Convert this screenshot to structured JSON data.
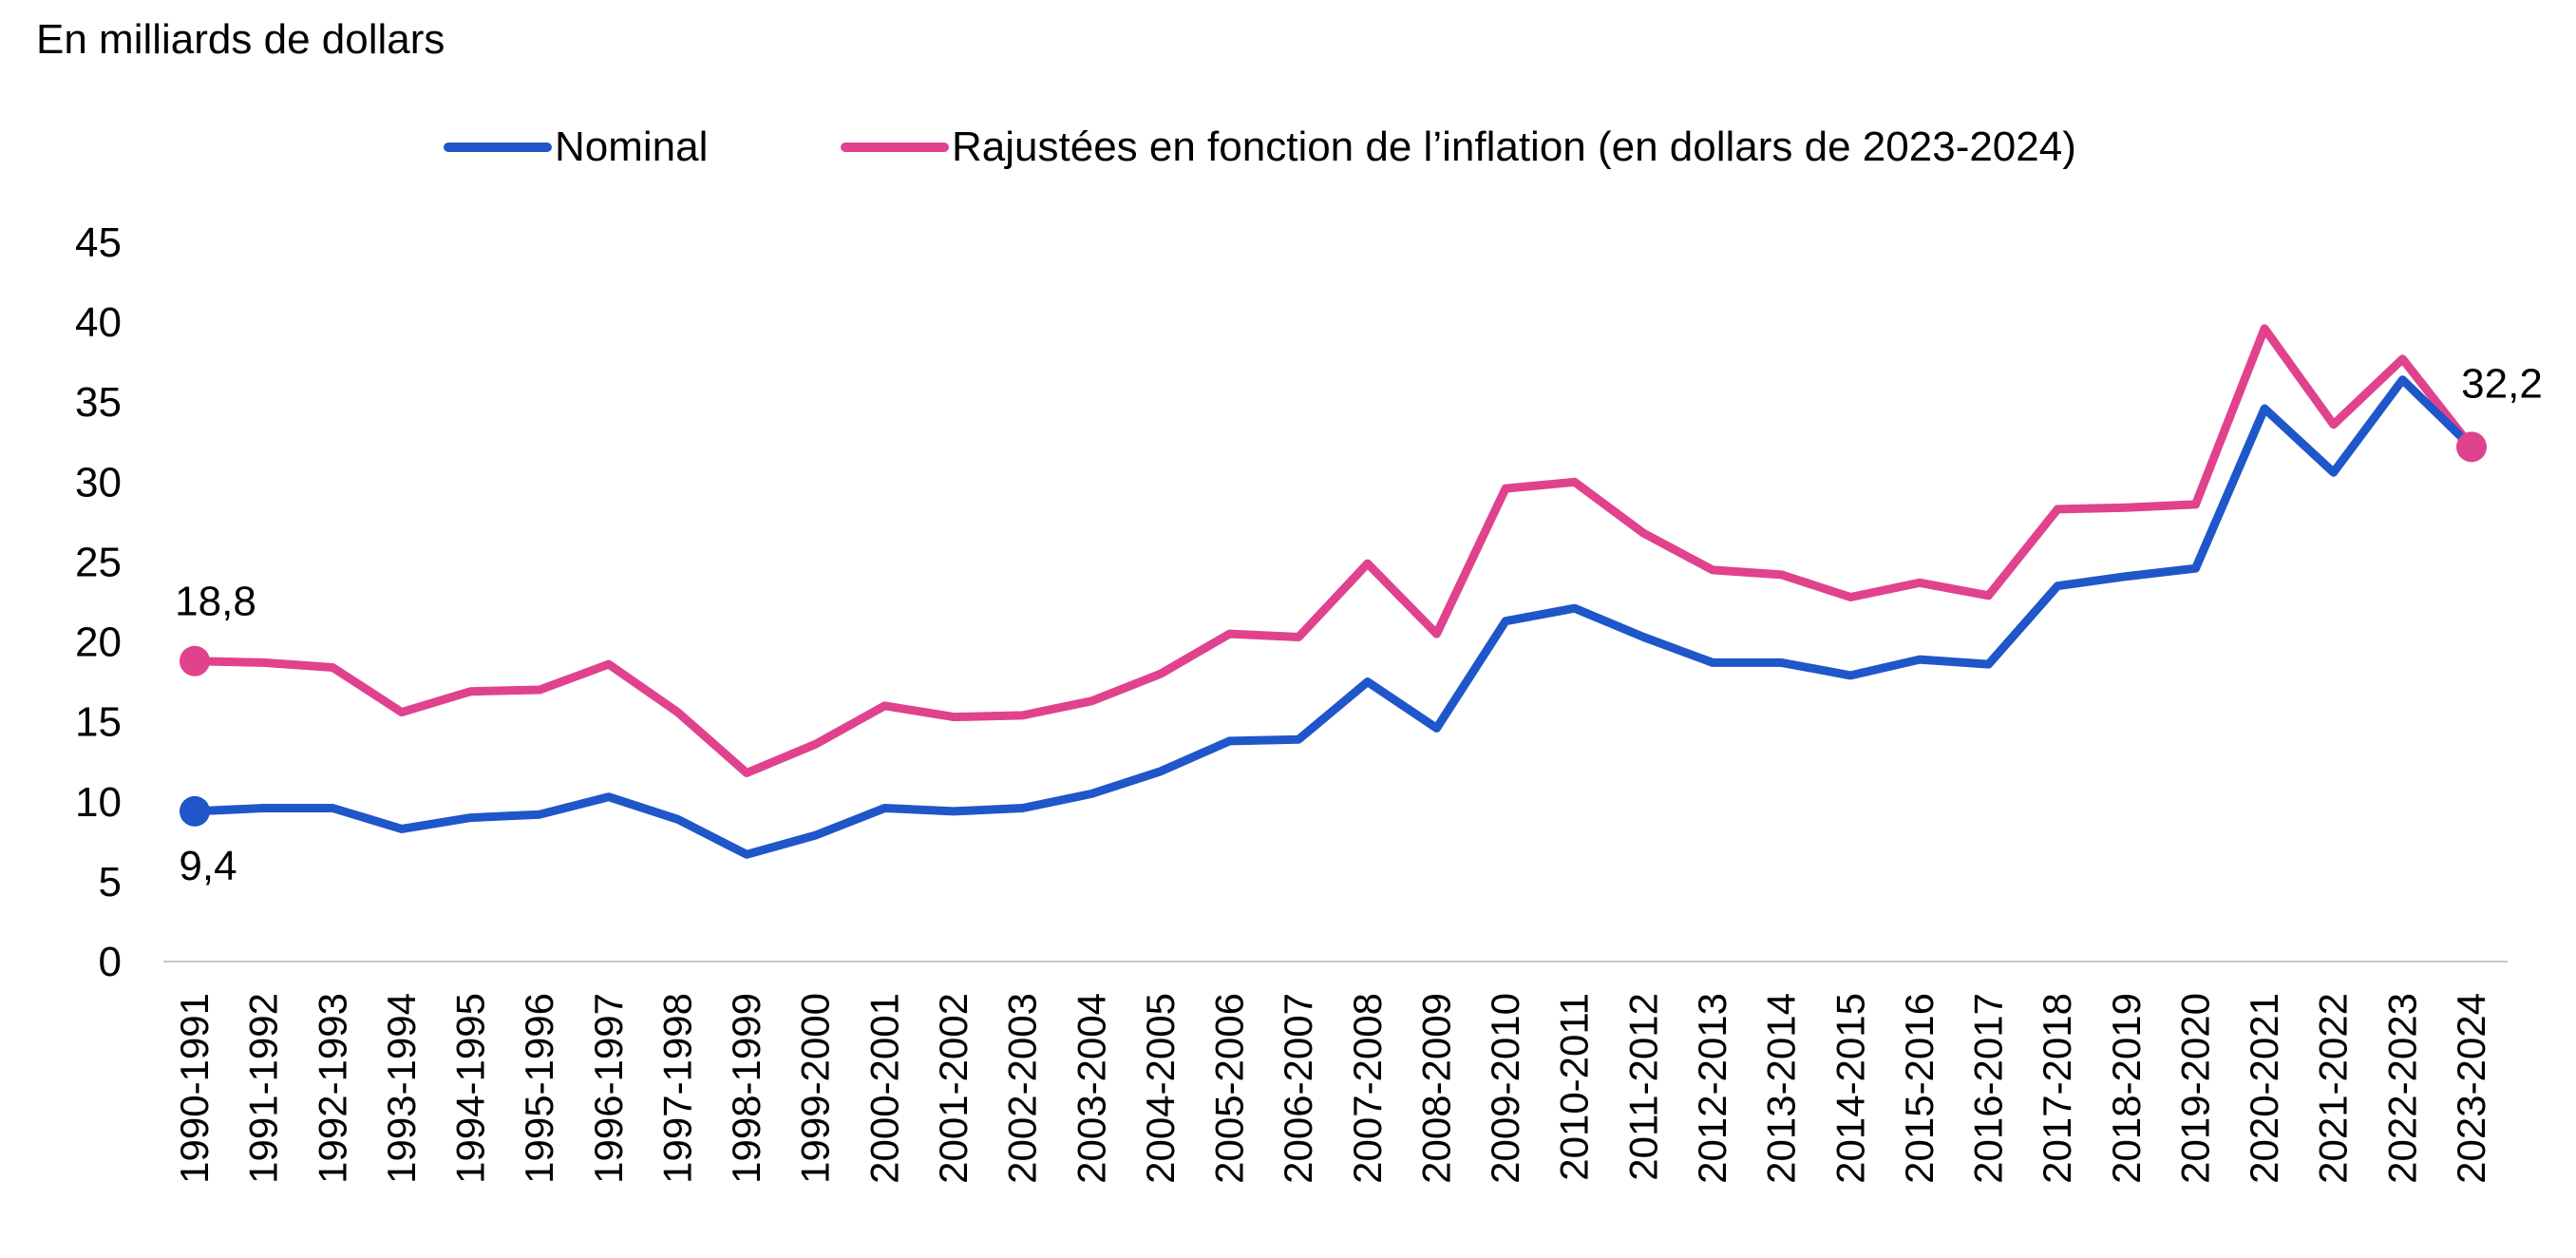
{
  "chart_data": {
    "type": "line",
    "ylabel": "En milliards de dollars",
    "ylim": [
      0,
      45
    ],
    "yticks": [
      0,
      5,
      10,
      15,
      20,
      25,
      30,
      35,
      40,
      45
    ],
    "grid": false,
    "legend_position": "top-center",
    "categories": [
      "1990-1991",
      "1991-1992",
      "1992-1993",
      "1993-1994",
      "1994-1995",
      "1995-1996",
      "1996-1997",
      "1997-1998",
      "1998-1999",
      "1999-2000",
      "2000-2001",
      "2001-2002",
      "2002-2003",
      "2003-2004",
      "2004-2005",
      "2005-2006",
      "2006-2007",
      "2007-2008",
      "2008-2009",
      "2009-2010",
      "2010-2011",
      "2011-2012",
      "2012-2013",
      "2013-2014",
      "2014-2015",
      "2015-2016",
      "2016-2017",
      "2017-2018",
      "2018-2019",
      "2019-2020",
      "2020-2021",
      "2021-2022",
      "2022-2023",
      "2023-2024"
    ],
    "series": [
      {
        "name": "Nominal",
        "color": "#1f56c9",
        "values": [
          9.4,
          9.6,
          9.6,
          8.3,
          9.0,
          9.2,
          10.3,
          8.9,
          6.7,
          7.9,
          9.6,
          9.4,
          9.6,
          10.5,
          11.9,
          13.8,
          13.9,
          17.5,
          14.6,
          21.3,
          22.1,
          20.3,
          18.7,
          18.7,
          17.9,
          18.9,
          18.6,
          23.5,
          24.1,
          24.6,
          34.6,
          30.6,
          36.4,
          32.2
        ],
        "labels": [
          {
            "index": 0,
            "text": "9,4"
          }
        ]
      },
      {
        "name": "Rajustées en fonction de l’inflation (en dollars de 2023-2024)",
        "color": "#e0428e",
        "values": [
          18.8,
          18.7,
          18.4,
          15.6,
          16.9,
          17.0,
          18.6,
          15.6,
          11.8,
          13.6,
          16.0,
          15.3,
          15.4,
          16.3,
          18.0,
          20.5,
          20.3,
          24.9,
          20.5,
          29.6,
          30.0,
          26.8,
          24.5,
          24.2,
          22.8,
          23.7,
          22.9,
          28.3,
          28.4,
          28.6,
          39.6,
          33.6,
          37.7,
          32.2
        ],
        "labels": [
          {
            "index": 0,
            "text": "18,8"
          },
          {
            "index": 33,
            "text": "32,2"
          }
        ]
      }
    ]
  }
}
